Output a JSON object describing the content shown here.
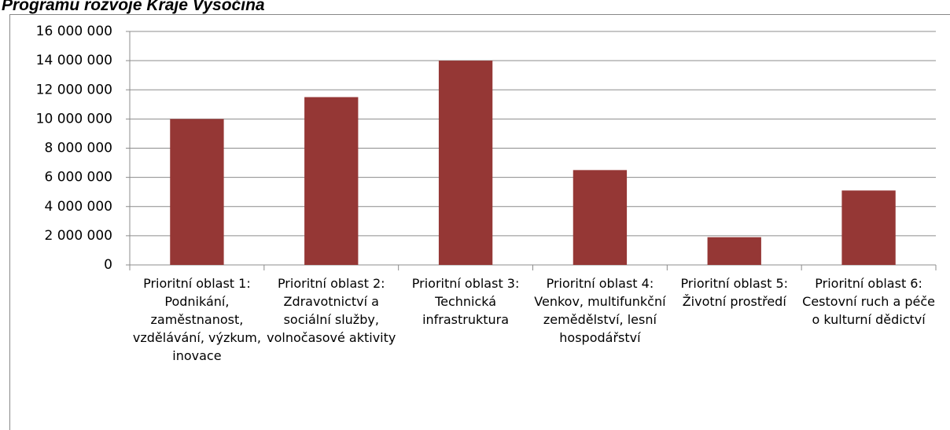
{
  "chart_data": {
    "type": "bar",
    "title": "Programu rozvoje Kraje Vysočina",
    "categories": [
      "Prioritní oblast 1: Podnikání, zaměstnanost, vzdělávání, výzkum, inovace",
      "Prioritní oblast 2: Zdravotnictví a sociální služby, volnočasové aktivity",
      "Prioritní oblast 3: Technická infrastruktura",
      "Prioritní oblast 4: Venkov, multifunkční zemědělství, lesní hospodářství",
      "Prioritní oblast 5: Životní prostředí",
      "Prioritní oblast 6: Cestovní ruch a péče o kulturní dědictví"
    ],
    "values": [
      10000000,
      11500000,
      14000000,
      6500000,
      1900000,
      5100000
    ],
    "color": "#953735",
    "ylim": [
      0,
      16000000
    ],
    "yticks": [
      0,
      {
        "value": 2000000,
        "label": "2 000 000"
      },
      {
        "value": 4000000,
        "label": "4 000 000"
      },
      {
        "value": 6000000,
        "label": "6 000 000"
      },
      {
        "value": 8000000,
        "label": "8 000 000"
      },
      {
        "value": 10000000,
        "label": "10 000 000"
      },
      {
        "value": 12000000,
        "label": "12 000 000"
      },
      {
        "value": 14000000,
        "label": "14 000 000"
      },
      {
        "value": 16000000,
        "label": "16 000 000"
      }
    ],
    "grid": true
  }
}
